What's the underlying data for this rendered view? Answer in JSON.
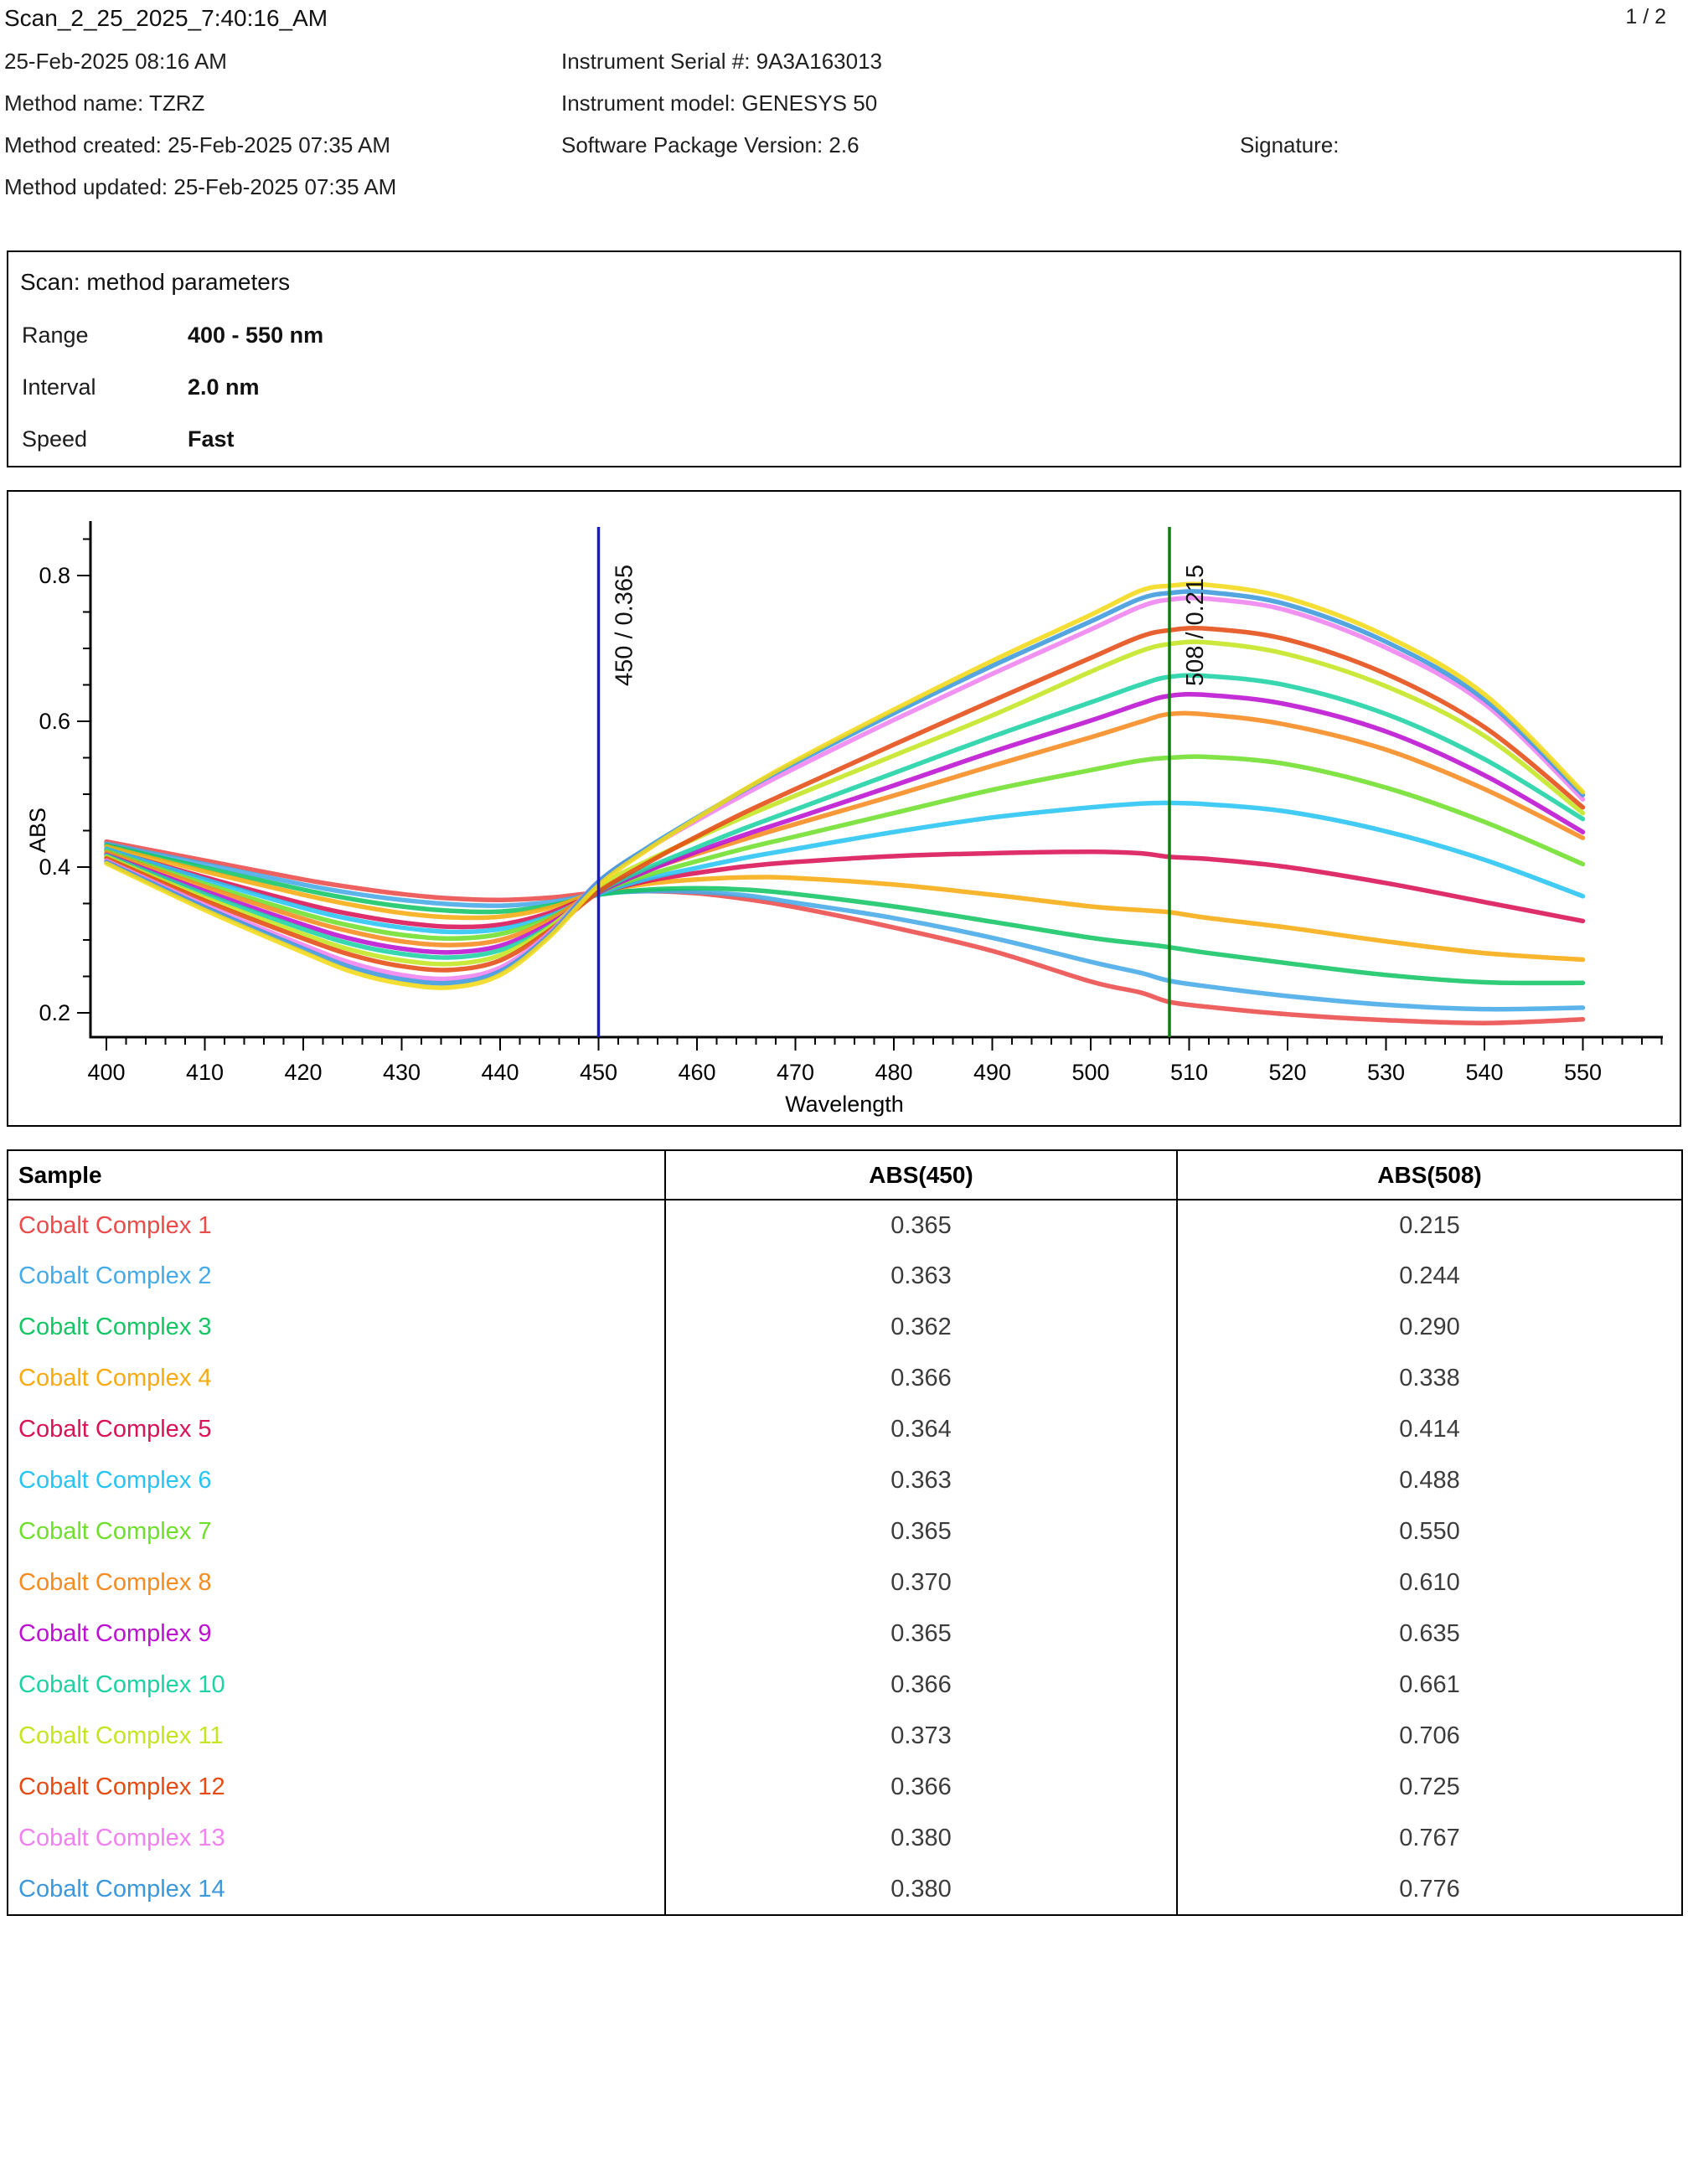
{
  "page": {
    "indicator": "1 / 2"
  },
  "header": {
    "title": "Scan_2_25_2025_7:40:16_AM",
    "scan_datetime": "25-Feb-2025 08:16 AM",
    "method_name": "Method name: TZRZ",
    "method_created": "Method created: 25-Feb-2025 07:35 AM",
    "method_updated": "Method updated: 25-Feb-2025 07:35 AM",
    "instrument_serial": "Instrument Serial #: 9A3A163013",
    "instrument_model": "Instrument model: GENESYS 50",
    "software_version": "Software Package Version: 2.6",
    "signature_label": "Signature:"
  },
  "method_parameters": {
    "title": "Scan: method parameters",
    "rows": [
      {
        "label": "Range",
        "value": "400 - 550 nm"
      },
      {
        "label": "Interval",
        "value": "2.0 nm"
      },
      {
        "label": "Speed",
        "value": "Fast"
      }
    ]
  },
  "chart_data": {
    "type": "line",
    "title": "",
    "xlabel": "Wavelength",
    "ylabel": "ABS",
    "x_axis": {
      "min": 400,
      "max": 550,
      "major_tick": 10,
      "minor_tick": 2,
      "axis_draw_end": 558
    },
    "y_axis": {
      "major_ticks": [
        0.2,
        0.4,
        0.6,
        0.8
      ],
      "minor_tick": 0.05,
      "minor_min": 0.2,
      "minor_max": 0.85,
      "value_min": 0.167,
      "value_max": 0.875
    },
    "grid": false,
    "legend": "none (series colors match sample-name colors in results table)",
    "markers": [
      {
        "label": "450 / 0.365",
        "wavelength": 450,
        "color": "#1a1ac8"
      },
      {
        "label": "508 / 0.215",
        "wavelength": 508,
        "color": "#0f7d12"
      }
    ],
    "x": [
      400,
      410,
      420,
      425,
      430,
      435,
      440,
      445,
      450,
      455,
      460,
      465,
      470,
      480,
      490,
      500,
      505,
      508,
      512,
      520,
      530,
      540,
      550
    ],
    "series": [
      {
        "name": "Cobalt Complex 1",
        "color": "#ea4b4b",
        "y": [
          0.435,
          0.409,
          0.383,
          0.372,
          0.363,
          0.357,
          0.355,
          0.358,
          0.365,
          0.367,
          0.364,
          0.356,
          0.345,
          0.317,
          0.285,
          0.243,
          0.228,
          0.215,
          0.208,
          0.198,
          0.19,
          0.186,
          0.191
        ]
      },
      {
        "name": "Cobalt Complex 2",
        "color": "#45aae8",
        "y": [
          0.432,
          0.404,
          0.376,
          0.364,
          0.355,
          0.349,
          0.347,
          0.352,
          0.363,
          0.367,
          0.366,
          0.361,
          0.351,
          0.33,
          0.303,
          0.27,
          0.255,
          0.244,
          0.236,
          0.223,
          0.211,
          0.205,
          0.207
        ]
      },
      {
        "name": "Cobalt Complex 3",
        "color": "#13c564",
        "y": [
          0.43,
          0.399,
          0.369,
          0.356,
          0.346,
          0.34,
          0.339,
          0.347,
          0.362,
          0.369,
          0.371,
          0.369,
          0.363,
          0.346,
          0.325,
          0.303,
          0.295,
          0.29,
          0.282,
          0.268,
          0.252,
          0.242,
          0.241
        ]
      },
      {
        "name": "Cobalt Complex 4",
        "color": "#f7ab11",
        "y": [
          0.428,
          0.394,
          0.362,
          0.348,
          0.337,
          0.331,
          0.332,
          0.344,
          0.366,
          0.377,
          0.383,
          0.386,
          0.385,
          0.376,
          0.362,
          0.346,
          0.341,
          0.338,
          0.33,
          0.317,
          0.298,
          0.282,
          0.273
        ]
      },
      {
        "name": "Cobalt Complex 5",
        "color": "#da1256",
        "y": [
          0.424,
          0.386,
          0.35,
          0.335,
          0.324,
          0.318,
          0.321,
          0.337,
          0.364,
          0.381,
          0.392,
          0.401,
          0.407,
          0.415,
          0.419,
          0.421,
          0.419,
          0.414,
          0.411,
          0.4,
          0.378,
          0.352,
          0.326
        ]
      },
      {
        "name": "Cobalt Complex 6",
        "color": "#27c4f4",
        "y": [
          0.425,
          0.383,
          0.344,
          0.328,
          0.317,
          0.311,
          0.315,
          0.333,
          0.363,
          0.384,
          0.399,
          0.413,
          0.425,
          0.448,
          0.468,
          0.482,
          0.487,
          0.488,
          0.486,
          0.476,
          0.449,
          0.41,
          0.36
        ]
      },
      {
        "name": "Cobalt Complex 7",
        "color": "#6fdf2b",
        "y": [
          0.422,
          0.377,
          0.336,
          0.319,
          0.307,
          0.302,
          0.308,
          0.33,
          0.365,
          0.389,
          0.408,
          0.426,
          0.442,
          0.474,
          0.506,
          0.533,
          0.546,
          0.55,
          0.551,
          0.541,
          0.509,
          0.462,
          0.404
        ]
      },
      {
        "name": "Cobalt Complex 8",
        "color": "#f68b20",
        "y": [
          0.42,
          0.373,
          0.329,
          0.311,
          0.298,
          0.293,
          0.3,
          0.327,
          0.37,
          0.396,
          0.418,
          0.439,
          0.459,
          0.498,
          0.539,
          0.578,
          0.599,
          0.61,
          0.609,
          0.595,
          0.561,
          0.507,
          0.44
        ]
      },
      {
        "name": "Cobalt Complex 9",
        "color": "#bc11d0",
        "y": [
          0.417,
          0.367,
          0.321,
          0.301,
          0.288,
          0.283,
          0.292,
          0.322,
          0.365,
          0.395,
          0.421,
          0.445,
          0.467,
          0.512,
          0.558,
          0.601,
          0.624,
          0.635,
          0.636,
          0.623,
          0.586,
          0.526,
          0.448
        ]
      },
      {
        "name": "Cobalt Complex 10",
        "color": "#1ed2a4",
        "y": [
          0.416,
          0.363,
          0.315,
          0.294,
          0.281,
          0.276,
          0.286,
          0.318,
          0.366,
          0.399,
          0.427,
          0.454,
          0.479,
          0.529,
          0.579,
          0.626,
          0.65,
          0.661,
          0.662,
          0.649,
          0.61,
          0.548,
          0.466
        ]
      },
      {
        "name": "Cobalt Complex 11",
        "color": "#c4e622",
        "y": [
          0.414,
          0.358,
          0.308,
          0.286,
          0.272,
          0.267,
          0.279,
          0.317,
          0.373,
          0.409,
          0.44,
          0.47,
          0.498,
          0.553,
          0.608,
          0.668,
          0.696,
          0.706,
          0.708,
          0.692,
          0.648,
          0.58,
          0.474
        ]
      },
      {
        "name": "Cobalt Complex 12",
        "color": "#e54b13",
        "y": [
          0.412,
          0.354,
          0.302,
          0.279,
          0.264,
          0.259,
          0.272,
          0.313,
          0.366,
          0.406,
          0.442,
          0.476,
          0.507,
          0.568,
          0.628,
          0.687,
          0.716,
          0.725,
          0.727,
          0.712,
          0.665,
          0.592,
          0.482
        ]
      },
      {
        "name": "Cobalt Complex 13",
        "color": "#ef82ef",
        "y": [
          0.409,
          0.348,
          0.293,
          0.268,
          0.252,
          0.247,
          0.262,
          0.31,
          0.38,
          0.425,
          0.464,
          0.501,
          0.536,
          0.602,
          0.665,
          0.726,
          0.757,
          0.767,
          0.768,
          0.752,
          0.701,
          0.624,
          0.493
        ]
      },
      {
        "name": "Cobalt Complex 14",
        "color": "#3c98dc",
        "y": [
          0.407,
          0.345,
          0.288,
          0.262,
          0.246,
          0.241,
          0.257,
          0.307,
          0.38,
          0.427,
          0.468,
          0.507,
          0.543,
          0.611,
          0.676,
          0.737,
          0.768,
          0.776,
          0.777,
          0.76,
          0.709,
          0.63,
          0.499
        ]
      },
      {
        "name": "unlabeled yellow trace",
        "color": "#f3da19",
        "y": [
          0.405,
          0.341,
          0.283,
          0.256,
          0.24,
          0.235,
          0.252,
          0.304,
          0.375,
          0.424,
          0.467,
          0.508,
          0.546,
          0.616,
          0.683,
          0.746,
          0.779,
          0.786,
          0.787,
          0.769,
          0.717,
          0.637,
          0.503
        ]
      }
    ]
  },
  "results_table": {
    "columns": [
      "Sample",
      "ABS(450)",
      "ABS(508)"
    ],
    "value_color": "#3c3c3c",
    "rows": [
      {
        "sample": "Cobalt Complex 1",
        "color": "#ea4b4b",
        "abs450": "0.365",
        "abs508": "0.215"
      },
      {
        "sample": "Cobalt Complex 2",
        "color": "#45aae8",
        "abs450": "0.363",
        "abs508": "0.244"
      },
      {
        "sample": "Cobalt Complex 3",
        "color": "#13c564",
        "abs450": "0.362",
        "abs508": "0.290"
      },
      {
        "sample": "Cobalt Complex 4",
        "color": "#f7ab11",
        "abs450": "0.366",
        "abs508": "0.338"
      },
      {
        "sample": "Cobalt Complex 5",
        "color": "#da1256",
        "abs450": "0.364",
        "abs508": "0.414"
      },
      {
        "sample": "Cobalt Complex 6",
        "color": "#27c4f4",
        "abs450": "0.363",
        "abs508": "0.488"
      },
      {
        "sample": "Cobalt Complex 7",
        "color": "#6fdf2b",
        "abs450": "0.365",
        "abs508": "0.550"
      },
      {
        "sample": "Cobalt Complex 8",
        "color": "#f68b20",
        "abs450": "0.370",
        "abs508": "0.610"
      },
      {
        "sample": "Cobalt Complex 9",
        "color": "#bc11d0",
        "abs450": "0.365",
        "abs508": "0.635"
      },
      {
        "sample": "Cobalt Complex 10",
        "color": "#1ed2a4",
        "abs450": "0.366",
        "abs508": "0.661"
      },
      {
        "sample": "Cobalt Complex 11",
        "color": "#c4e622",
        "abs450": "0.373",
        "abs508": "0.706"
      },
      {
        "sample": "Cobalt Complex 12",
        "color": "#e54b13",
        "abs450": "0.366",
        "abs508": "0.725"
      },
      {
        "sample": "Cobalt Complex 13",
        "color": "#ef82ef",
        "abs450": "0.380",
        "abs508": "0.767"
      },
      {
        "sample": "Cobalt Complex 14",
        "color": "#3c98dc",
        "abs450": "0.380",
        "abs508": "0.776"
      }
    ]
  }
}
